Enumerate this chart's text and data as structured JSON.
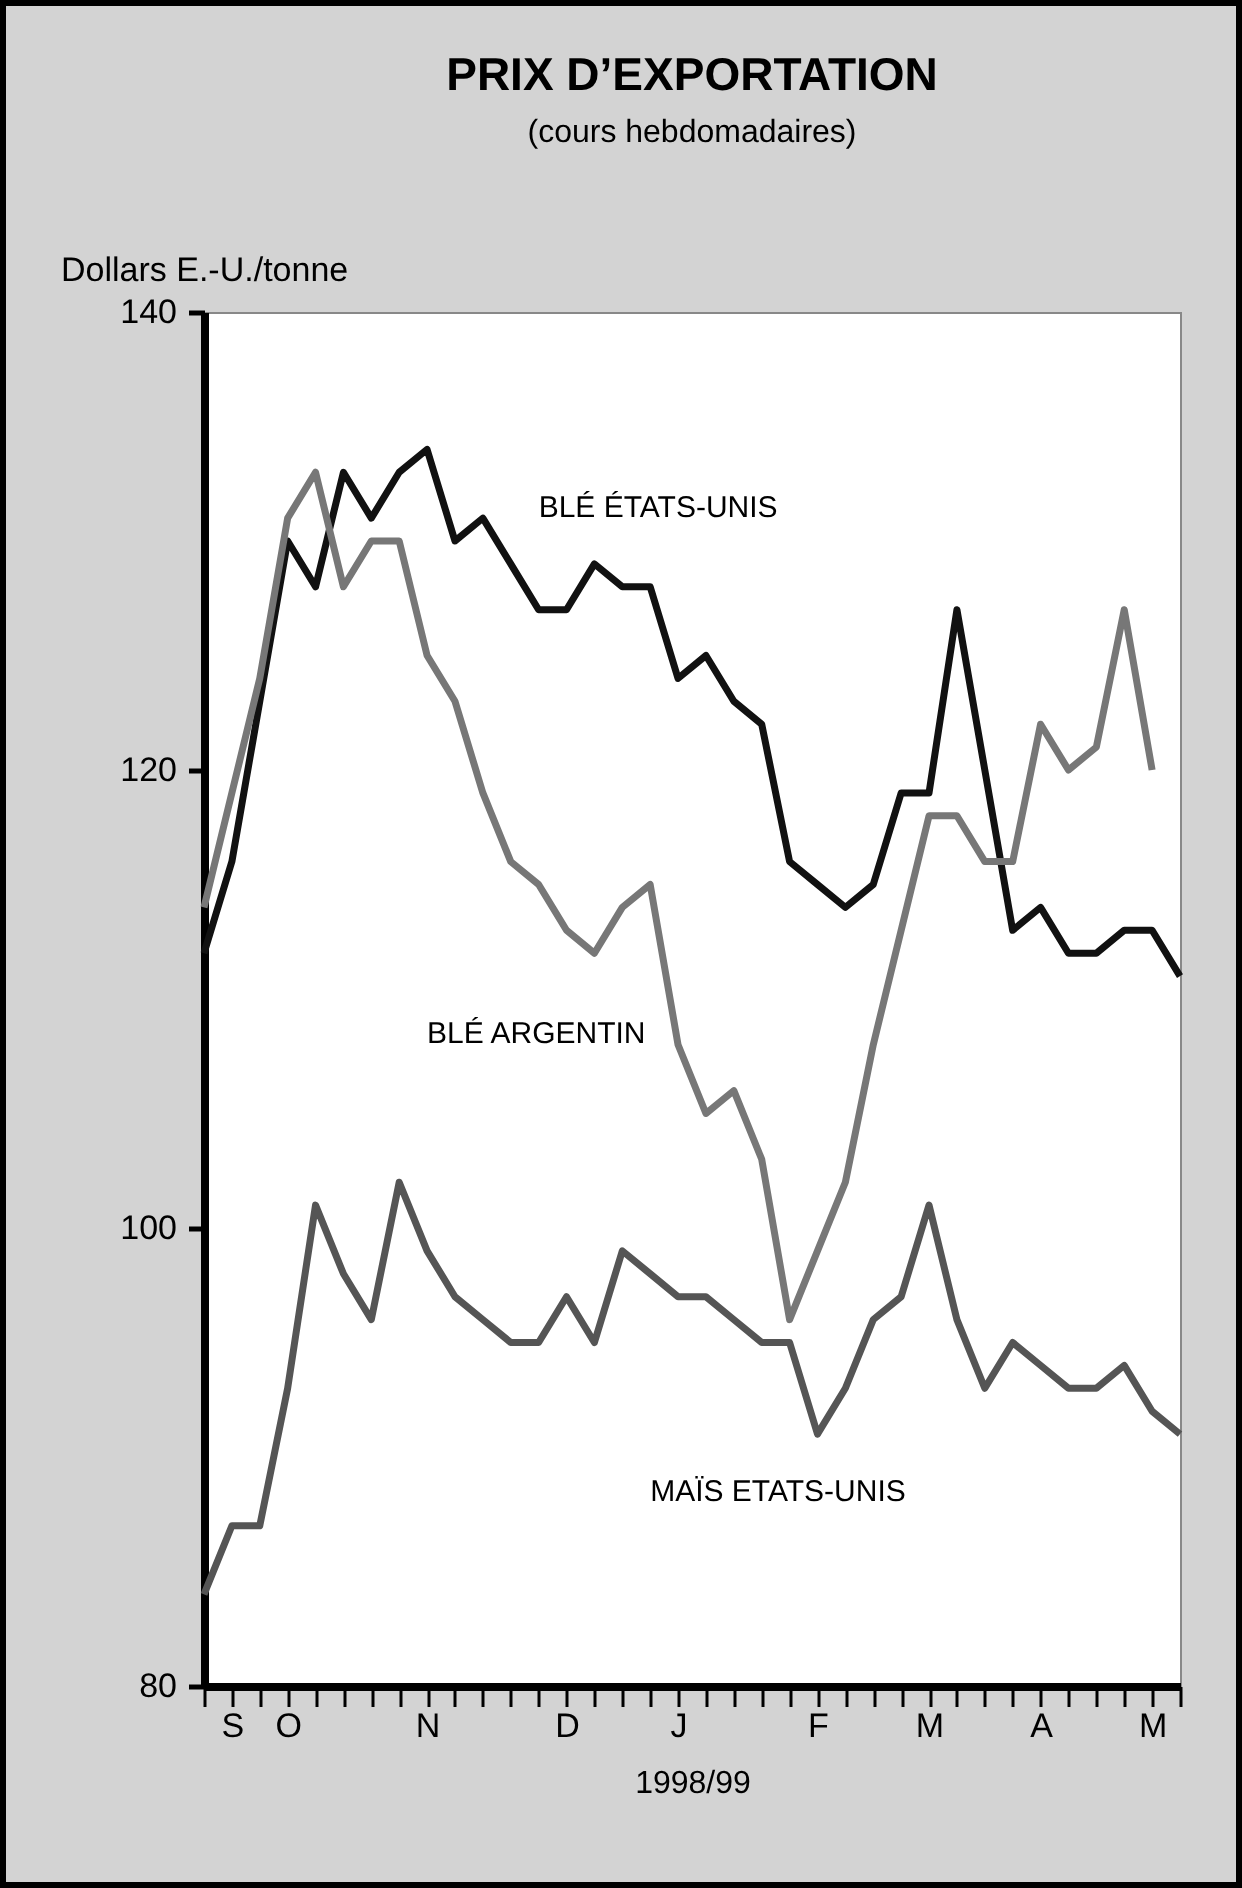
{
  "chart_data": {
    "type": "line",
    "title": "PRIX D’EXPORTATION",
    "subtitle": "(cours hebdomadaires)",
    "ylabel": "Dollars E.-U./tonne",
    "xlabel": "1998/99",
    "categories": [
      null,
      "S",
      null,
      "O",
      null,
      null,
      null,
      null,
      "N",
      null,
      null,
      null,
      null,
      "D",
      null,
      null,
      null,
      "J",
      null,
      null,
      null,
      null,
      "F",
      null,
      null,
      null,
      "M",
      null,
      null,
      null,
      "A",
      null,
      null,
      null,
      "M",
      null
    ],
    "ylim": [
      80,
      140
    ],
    "yticks": [
      80,
      100,
      120,
      140
    ],
    "grid": false,
    "legend": false,
    "marker": "none",
    "line_style": "solid",
    "series": [
      {
        "name": "BLÉ ÉTATS-UNIS",
        "color": "#111111",
        "values": [
          112,
          116,
          123,
          130,
          128,
          133,
          131,
          133,
          134,
          130,
          131,
          129,
          127,
          127,
          129,
          128,
          128,
          124,
          125,
          123,
          122,
          116,
          115,
          114,
          115,
          119,
          119,
          127,
          120,
          113,
          114,
          112,
          112,
          113,
          113,
          111
        ]
      },
      {
        "name": "BLÉ ARGENTIN",
        "color": "#777777",
        "values": [
          114,
          119,
          124,
          131,
          133,
          128,
          130,
          130,
          125,
          123,
          119,
          116,
          115,
          113,
          112,
          114,
          115,
          108,
          105,
          106,
          103,
          96,
          99,
          102,
          108,
          113,
          118,
          118,
          116,
          116,
          122,
          120,
          121,
          127,
          120,
          null
        ]
      },
      {
        "name": "MAÏS ETATS-UNIS",
        "color": "#555555",
        "values": [
          84,
          87,
          87,
          93,
          101,
          98,
          96,
          102,
          99,
          97,
          96,
          95,
          95,
          97,
          95,
          99,
          98,
          97,
          97,
          96,
          95,
          95,
          91,
          93,
          96,
          97,
          101,
          96,
          93,
          95,
          94,
          93,
          93,
          94,
          92,
          91
        ]
      }
    ]
  }
}
